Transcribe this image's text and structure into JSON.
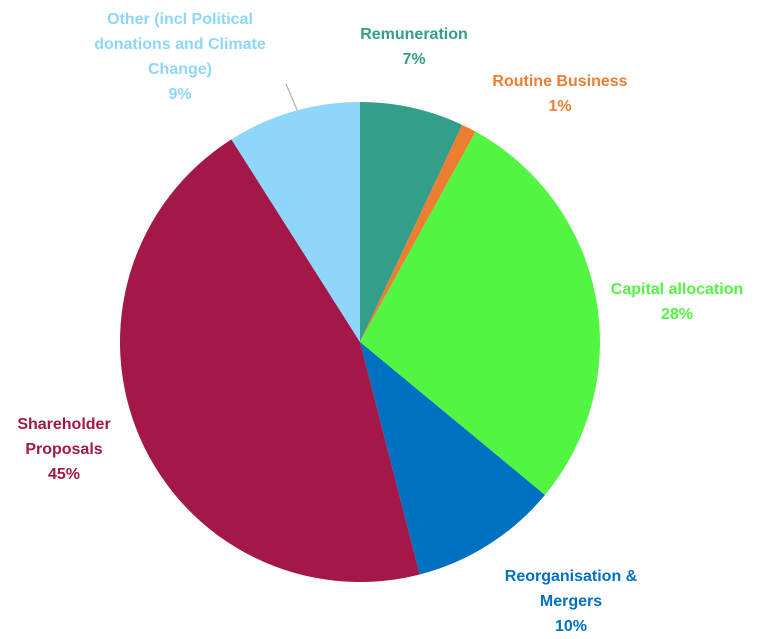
{
  "chart_data": {
    "type": "pie",
    "categories": [
      "Remuneration",
      "Routine Business",
      "Capital allocation",
      "Reorganisation & Mergers",
      "Shareholder Proposals",
      "Other (incl Political donations and Climate Change)"
    ],
    "values": [
      7,
      1,
      28,
      10,
      45,
      9
    ],
    "value_labels": [
      "7%",
      "1%",
      "28%",
      "10%",
      "45%",
      "9%"
    ],
    "colors": [
      "#339e8a",
      "#ed7d31",
      "#52f542",
      "#0070c0",
      "#a31848",
      "#8fd6fb"
    ]
  }
}
